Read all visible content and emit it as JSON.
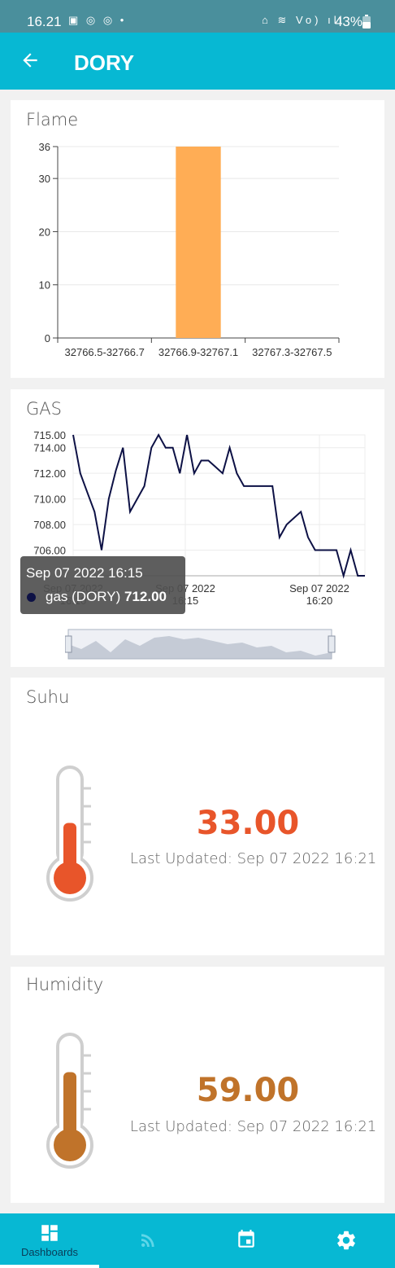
{
  "status_bar": {
    "time": "16.21",
    "notification_icons": "▣ ◎ ◎ •",
    "system_icons": "⌂ ≋ Vo) ıll",
    "battery": "43%"
  },
  "app_bar": {
    "title": "DORY",
    "back_icon": "arrow-left"
  },
  "flame_card": {
    "title": "Flame",
    "chart_data": {
      "type": "bar",
      "title": "Flame",
      "categories": [
        "32766.5-32766.7",
        "32766.9-32767.1",
        "32767.3-32767.5"
      ],
      "values": [
        0,
        36,
        0
      ],
      "yticks": [
        "0",
        "10",
        "20",
        "30",
        "36"
      ],
      "ylim": [
        0,
        36
      ],
      "color": "#ffad55",
      "grid": true
    }
  },
  "gas_card": {
    "title": "GAS",
    "chart_data": {
      "type": "line",
      "series": [
        {
          "name": "gas (DORY)",
          "color": "#0d1145",
          "values": [
            715,
            712,
            710.5,
            709,
            706,
            710,
            712.2,
            714,
            709,
            710,
            711,
            714,
            715,
            714,
            714,
            712,
            715,
            712,
            713,
            713,
            712.5,
            712,
            714,
            712,
            711,
            711,
            711,
            711,
            711,
            707,
            708,
            708.5,
            709,
            707,
            706,
            706,
            706,
            706,
            704,
            706,
            704,
            704
          ]
        }
      ],
      "yticks": [
        "706.00",
        "708.00",
        "710.00",
        "712.00",
        "714.00",
        "715.00"
      ],
      "ylim": [
        704,
        715
      ],
      "xticks": [
        {
          "line1": "Sep 07 2022",
          "line2": "16:10"
        },
        {
          "line1": "Sep 07 2022",
          "line2": "16:15"
        },
        {
          "line1": "Sep 07 2022",
          "line2": "16:20"
        }
      ],
      "grid": true
    },
    "tooltip": {
      "title": "Sep 07 2022 16:15",
      "series_name": "gas (DORY)",
      "value": "712.00"
    }
  },
  "suhu_card": {
    "title": "Suhu",
    "value": "33.00",
    "updated": "Last Updated: Sep 07 2022 16:21",
    "value_color": "#e8552a",
    "level": 0.45
  },
  "humidity_card": {
    "title": "Humidity",
    "value": "59.00",
    "updated": "Last Updated: Sep 07 2022 16:21",
    "value_color": "#c0732a",
    "level": 0.65
  },
  "bottom_nav": {
    "items": [
      {
        "label": "Dashboards",
        "icon": "dashboard-icon",
        "active": true
      },
      {
        "label": "",
        "icon": "rss-feed-icon",
        "active": false
      },
      {
        "label": "",
        "icon": "calendar-icon",
        "active": false
      },
      {
        "label": "",
        "icon": "settings-gear-icon",
        "active": false
      }
    ]
  }
}
